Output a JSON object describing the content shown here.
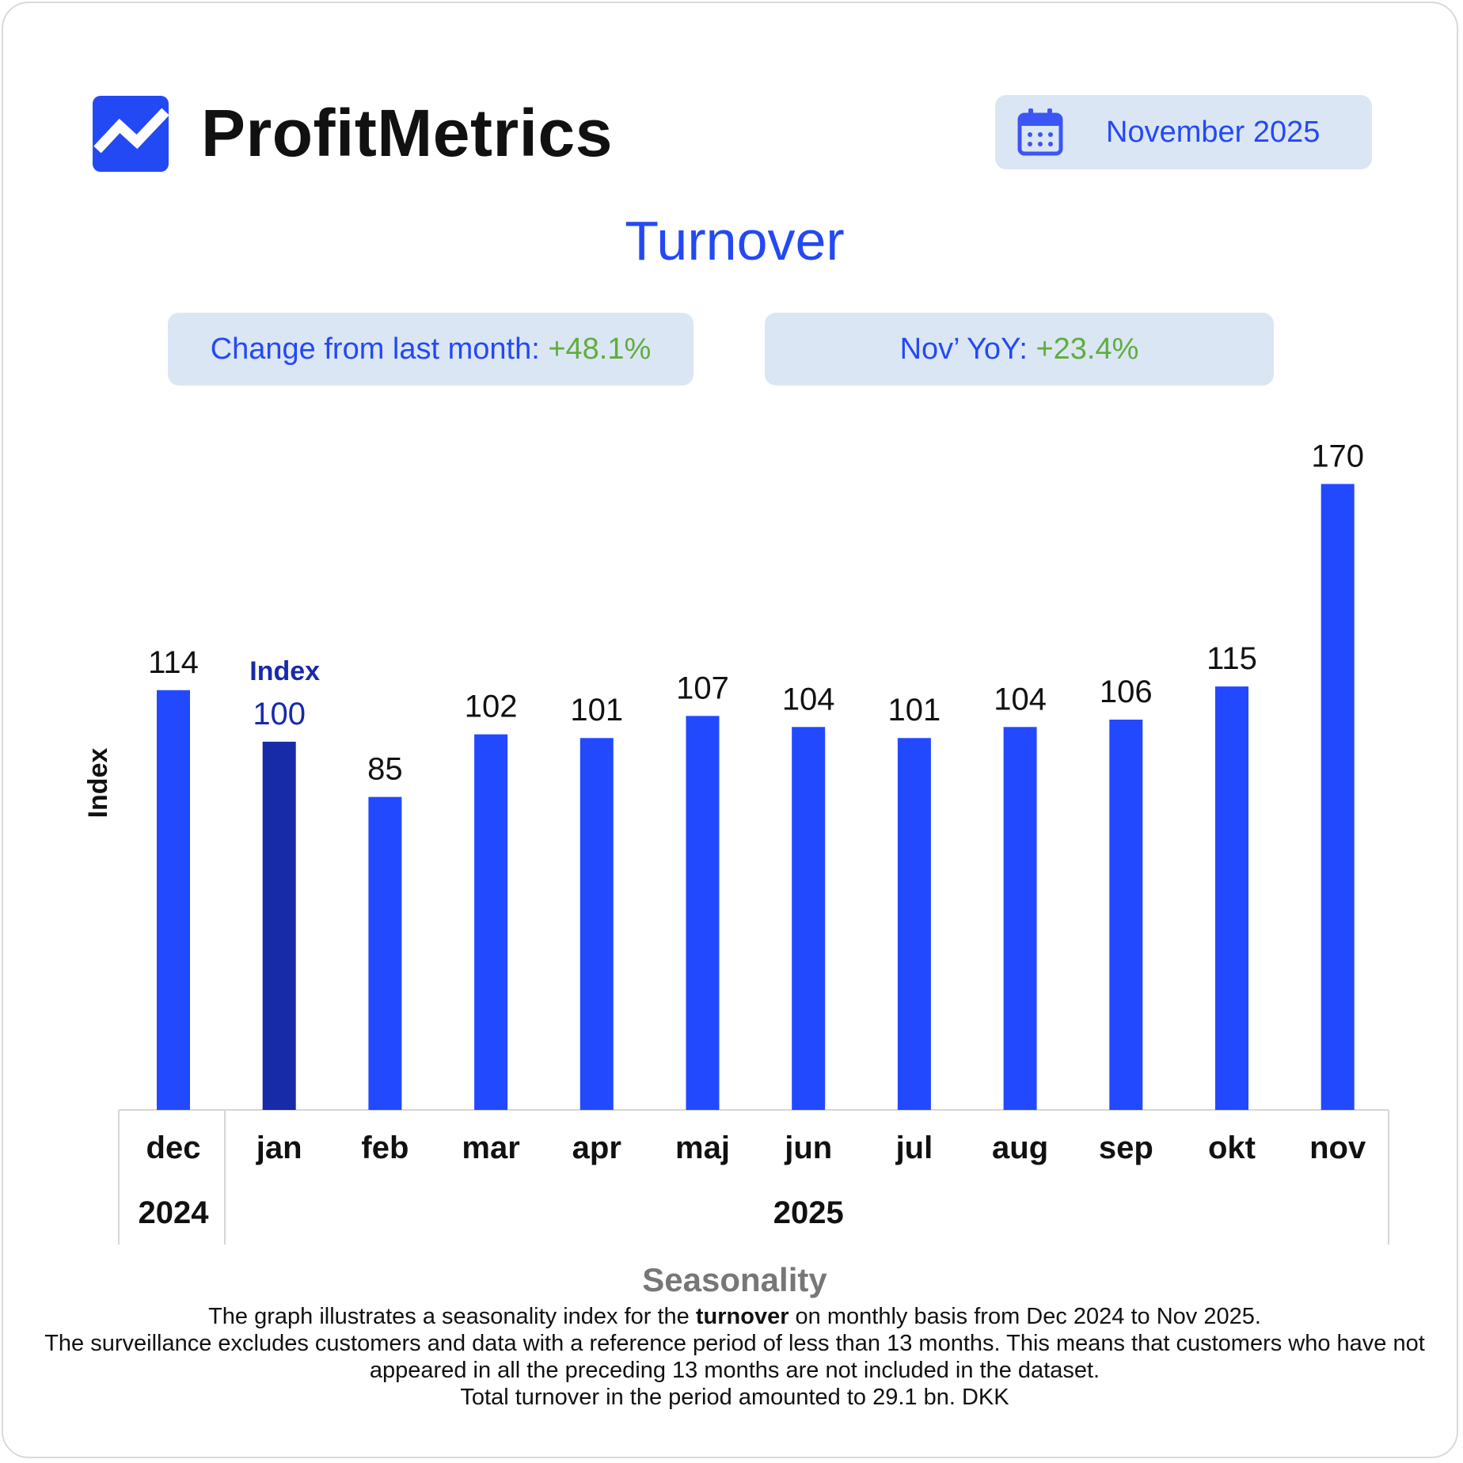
{
  "brand": {
    "name": "ProfitMetrics"
  },
  "period": {
    "label": "November 2025"
  },
  "title": "Turnover",
  "kpis": {
    "mom": {
      "label": "Change from last month: ",
      "value": "+48.1%"
    },
    "yoy": {
      "label": "Nov’ YoY: ",
      "value": "+23.4%"
    }
  },
  "colors": {
    "accent": "#2349f5",
    "bar": "#2349ff",
    "base_bar": "#172aa8",
    "positive": "#5fae3c",
    "pill_bg": "#dbe6f4"
  },
  "icons": {
    "logo": "trend-chart-logo",
    "calendar": "calendar-icon"
  },
  "chart_data": {
    "type": "bar",
    "ylabel": "Index",
    "categories": [
      "dec",
      "jan",
      "feb",
      "mar",
      "apr",
      "maj",
      "jun",
      "jul",
      "aug",
      "sep",
      "okt",
      "nov"
    ],
    "values": [
      114,
      100,
      85,
      102,
      101,
      107,
      104,
      101,
      104,
      106,
      115,
      170
    ],
    "base_category": "jan",
    "base_annotation": "Index",
    "year_groups": [
      {
        "label": "2024",
        "categories": [
          "dec"
        ]
      },
      {
        "label": "2025",
        "categories": [
          "jan",
          "feb",
          "mar",
          "apr",
          "maj",
          "jun",
          "jul",
          "aug",
          "sep",
          "okt",
          "nov"
        ]
      }
    ],
    "ylim": [
      0,
      170
    ],
    "grid": false,
    "legend": "none"
  },
  "footer": {
    "title": "Seasonality",
    "line1_pre": "The graph illustrates a seasonality index for the ",
    "line1_bold": "turnover",
    "line1_post": " on monthly basis from Dec 2024 to Nov 2025.",
    "line2": "The surveillance excludes customers and data with a reference period of less than 13 months. This means that customers who have not appeared in all the preceding 13 months are not included in the dataset.",
    "line3": "Total turnover in the period amounted to 29.1 bn. DKK"
  }
}
